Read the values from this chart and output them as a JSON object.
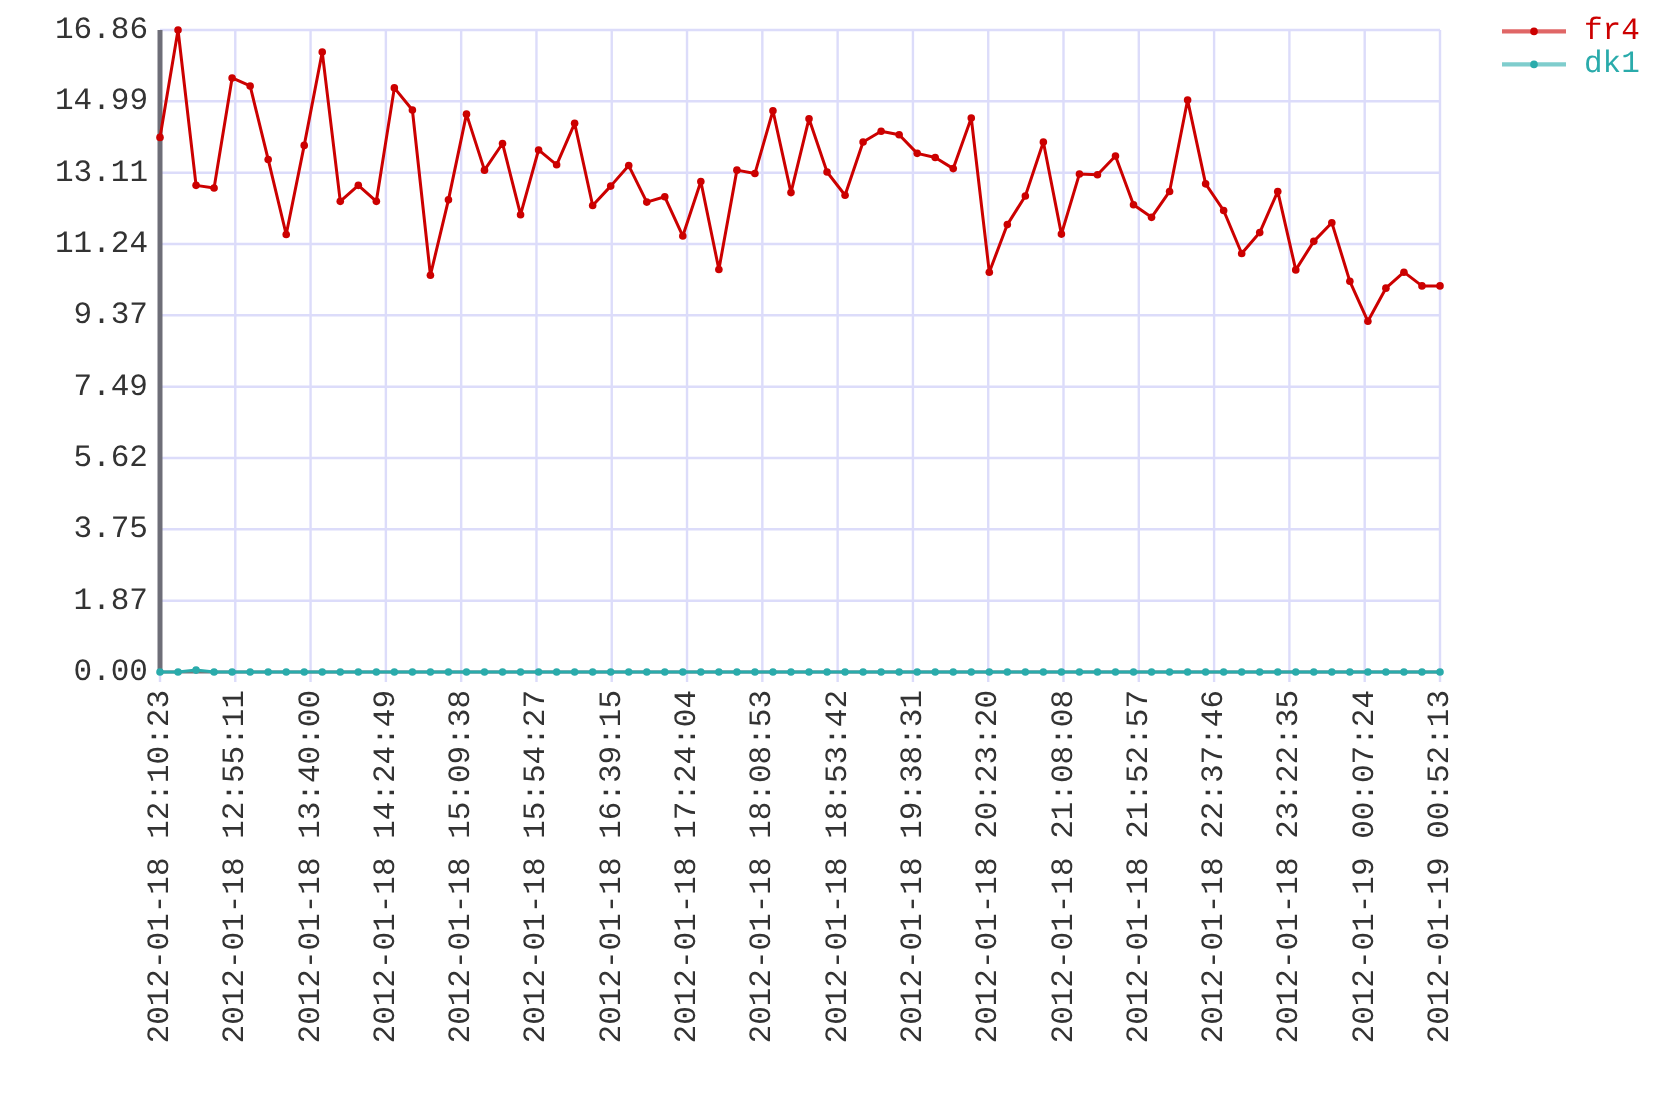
{
  "chart_data": {
    "type": "line",
    "x": [
      "2012-01-18T12:10:23",
      "2012-01-18T12:21:07",
      "2012-01-18T12:31:51",
      "2012-01-18T12:42:34",
      "2012-01-18T12:53:18",
      "2012-01-18T13:04:02",
      "2012-01-18T13:14:46",
      "2012-01-18T13:25:30",
      "2012-01-18T13:36:13",
      "2012-01-18T13:46:57",
      "2012-01-18T13:57:41",
      "2012-01-18T14:08:25",
      "2012-01-18T14:19:09",
      "2012-01-18T14:29:52",
      "2012-01-18T14:40:36",
      "2012-01-18T14:51:20",
      "2012-01-18T15:02:04",
      "2012-01-18T15:12:48",
      "2012-01-18T15:23:31",
      "2012-01-18T15:34:15",
      "2012-01-18T15:44:59",
      "2012-01-18T15:55:43",
      "2012-01-18T16:06:27",
      "2012-01-18T16:17:10",
      "2012-01-18T16:27:54",
      "2012-01-18T16:38:38",
      "2012-01-18T16:49:22",
      "2012-01-18T17:00:06",
      "2012-01-18T17:10:49",
      "2012-01-18T17:21:33",
      "2012-01-18T17:32:17",
      "2012-01-18T17:43:01",
      "2012-01-18T17:53:45",
      "2012-01-18T18:04:28",
      "2012-01-18T18:15:12",
      "2012-01-18T18:25:56",
      "2012-01-18T18:36:40",
      "2012-01-18T18:47:24",
      "2012-01-18T18:58:07",
      "2012-01-18T19:08:51",
      "2012-01-18T19:19:35",
      "2012-01-18T19:30:19",
      "2012-01-18T19:41:03",
      "2012-01-18T19:51:46",
      "2012-01-18T20:02:30",
      "2012-01-18T20:13:14",
      "2012-01-18T20:23:58",
      "2012-01-18T20:34:42",
      "2012-01-18T20:45:25",
      "2012-01-18T20:56:09",
      "2012-01-18T21:06:53",
      "2012-01-18T21:17:37",
      "2012-01-18T21:28:21",
      "2012-01-18T21:39:04",
      "2012-01-18T21:49:48",
      "2012-01-18T22:00:32",
      "2012-01-18T22:11:16",
      "2012-01-18T22:22:00",
      "2012-01-18T22:32:43",
      "2012-01-18T22:43:27",
      "2012-01-18T22:54:11",
      "2012-01-18T23:04:55",
      "2012-01-18T23:15:39",
      "2012-01-18T23:26:22",
      "2012-01-18T23:37:06",
      "2012-01-18T23:47:50",
      "2012-01-18T23:58:34",
      "2012-01-19T00:09:18",
      "2012-01-19T00:20:01",
      "2012-01-19T00:30:45",
      "2012-01-19T00:41:29",
      "2012-01-19T00:52:13"
    ],
    "series": [
      {
        "name": "fr4",
        "color": "#cc0000",
        "values": [
          14.04,
          16.86,
          12.78,
          12.71,
          15.6,
          15.39,
          13.46,
          11.49,
          13.83,
          16.28,
          12.36,
          12.78,
          12.36,
          15.34,
          14.76,
          10.42,
          12.4,
          14.65,
          13.18,
          13.88,
          12.01,
          13.71,
          13.32,
          14.41,
          12.25,
          12.76,
          13.3,
          12.34,
          12.48,
          11.45,
          12.88,
          10.57,
          13.18,
          13.09,
          14.74,
          12.59,
          14.53,
          13.13,
          12.52,
          13.92,
          14.2,
          14.11,
          13.62,
          13.51,
          13.22,
          14.55,
          10.5,
          11.75,
          12.5,
          13.92,
          11.5,
          13.08,
          13.06,
          13.55,
          12.27,
          11.94,
          12.62,
          15.02,
          12.82,
          12.12,
          10.99,
          11.54,
          12.62,
          10.56,
          11.31,
          11.8,
          10.26,
          9.21,
          10.08,
          10.5,
          10.14,
          10.14
        ]
      },
      {
        "name": "dk1",
        "color": "#2aabab",
        "values": [
          0,
          0,
          0.05,
          0,
          0,
          0,
          0,
          0,
          0,
          0,
          0,
          0,
          0,
          0,
          0,
          0,
          0,
          0,
          0,
          0,
          0,
          0,
          0,
          0,
          0,
          0,
          0,
          0,
          0,
          0,
          0,
          0,
          0,
          0,
          0,
          0,
          0,
          0,
          0,
          0,
          0,
          0,
          0,
          0,
          0,
          0,
          0,
          0,
          0,
          0,
          0,
          0,
          0,
          0,
          0,
          0,
          0,
          0,
          0,
          0,
          0,
          0,
          0,
          0,
          0,
          0,
          0,
          0,
          0,
          0,
          0,
          0
        ]
      }
    ],
    "xlim": [
      "2012-01-18T12:10:23",
      "2012-01-19T00:52:13"
    ],
    "xticks": [
      {
        "value": "2012-01-18T12:10:23",
        "label": "2012-01-18 12:10:23"
      },
      {
        "value": "2012-01-18T12:55:11",
        "label": "2012-01-18 12:55:11"
      },
      {
        "value": "2012-01-18T13:40:00",
        "label": "2012-01-18 13:40:00"
      },
      {
        "value": "2012-01-18T14:24:49",
        "label": "2012-01-18 14:24:49"
      },
      {
        "value": "2012-01-18T15:09:38",
        "label": "2012-01-18 15:09:38"
      },
      {
        "value": "2012-01-18T15:54:27",
        "label": "2012-01-18 15:54:27"
      },
      {
        "value": "2012-01-18T16:39:15",
        "label": "2012-01-18 16:39:15"
      },
      {
        "value": "2012-01-18T17:24:04",
        "label": "2012-01-18 17:24:04"
      },
      {
        "value": "2012-01-18T18:08:53",
        "label": "2012-01-18 18:08:53"
      },
      {
        "value": "2012-01-18T18:53:42",
        "label": "2012-01-18 18:53:42"
      },
      {
        "value": "2012-01-18T19:38:31",
        "label": "2012-01-18 19:38:31"
      },
      {
        "value": "2012-01-18T20:23:20",
        "label": "2012-01-18 20:23:20"
      },
      {
        "value": "2012-01-18T21:08:08",
        "label": "2012-01-18 21:08:08"
      },
      {
        "value": "2012-01-18T21:52:57",
        "label": "2012-01-18 21:52:57"
      },
      {
        "value": "2012-01-18T22:37:46",
        "label": "2012-01-18 22:37:46"
      },
      {
        "value": "2012-01-18T23:22:35",
        "label": "2012-01-18 23:22:35"
      },
      {
        "value": "2012-01-19T00:07:24",
        "label": "2012-01-19 00:07:24"
      },
      {
        "value": "2012-01-19T00:52:13",
        "label": "2012-01-19 00:52:13"
      }
    ],
    "ylim": [
      0,
      16.86
    ],
    "yticks": [
      {
        "value": 0,
        "label": "0.00"
      },
      1.87,
      3.75,
      5.62,
      7.49,
      9.37,
      11.24,
      13.11,
      14.99,
      16.86
    ],
    "grid": true,
    "legend": "top right",
    "marker": "circle",
    "line_style": "solid"
  }
}
